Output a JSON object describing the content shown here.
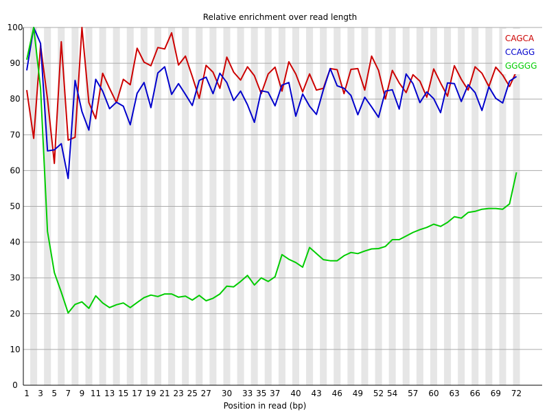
{
  "chart_data": {
    "type": "line",
    "title": "Relative enrichment over read length",
    "xlabel": "Position in read (bp)",
    "ylabel": "",
    "ylim": [
      0,
      100
    ],
    "yticks": [
      0,
      10,
      20,
      30,
      40,
      50,
      60,
      70,
      80,
      90,
      100
    ],
    "grid": "horizontal lines with alternating vertical position bands",
    "legend_position": "top-right",
    "x_tick_labels": [
      "1",
      "3",
      "5",
      "7",
      "9",
      "11",
      "13",
      "15",
      "17",
      "19",
      "21",
      "23",
      "25",
      "27",
      "30",
      "33",
      "35",
      "37",
      "40",
      "43",
      "46",
      "49",
      "52",
      "54",
      "57",
      "60",
      "63",
      "66",
      "69",
      "72"
    ],
    "x": [
      "1",
      "2",
      "3",
      "4",
      "5",
      "6",
      "7",
      "8",
      "9",
      "10",
      "11",
      "12",
      "13",
      "14",
      "15",
      "16",
      "17",
      "18",
      "19",
      "20",
      "21",
      "22",
      "23",
      "24",
      "25",
      "26",
      "27",
      "28",
      "29",
      "30",
      "31",
      "32",
      "33",
      "34",
      "35",
      "36",
      "37",
      "38",
      "39",
      "40",
      "41",
      "42",
      "43",
      "44",
      "45",
      "46",
      "47",
      "48",
      "49",
      "50",
      "51",
      "52",
      "53",
      "54",
      "55",
      "56",
      "57",
      "58",
      "59",
      "60",
      "61",
      "62",
      "63",
      "64",
      "65",
      "66",
      "67",
      "68",
      "69",
      "70",
      "71",
      "72"
    ],
    "series": [
      {
        "name": "CAGCA",
        "color": "#cc0000",
        "values": [
          82.5,
          69,
          95,
          80,
          62,
          96,
          68.5,
          69.3,
          100,
          79,
          74.5,
          87.2,
          83,
          79,
          85.5,
          84,
          94.2,
          90.3,
          89.3,
          94.4,
          94,
          98.5,
          89.5,
          92,
          86.3,
          80.2,
          89.4,
          87.5,
          83,
          91.7,
          87.5,
          85.3,
          89,
          86.5,
          81.5,
          87,
          88.9,
          82.2,
          90.4,
          87,
          82,
          87,
          82.5,
          83,
          88.5,
          88.2,
          81.5,
          88.3,
          88.5,
          82.5,
          92,
          88,
          80,
          88,
          84.5,
          81.8,
          86.8,
          85,
          80.5,
          88.4,
          84.5,
          80.8,
          89.3,
          85.5,
          82.5,
          89,
          87.2,
          83.5,
          88.9,
          86.7,
          83.5,
          87.8
        ]
      },
      {
        "name": "CCAGG",
        "color": "#0000cc",
        "values": [
          88,
          100,
          95.5,
          65.5,
          65.8,
          67.5,
          57.8,
          85.2,
          76.5,
          71.3,
          85.5,
          82.2,
          77.3,
          79.1,
          78,
          72.8,
          81.6,
          84.6,
          77.6,
          87.3,
          89,
          81.3,
          84.3,
          81.3,
          78.2,
          85.2,
          86.1,
          81.5,
          87.2,
          84.6,
          79.6,
          82.2,
          78.4,
          73.5,
          82.3,
          81.9,
          78.1,
          83.9,
          84.6,
          75.2,
          81.4,
          78,
          75.7,
          82.6,
          88.5,
          83.7,
          83,
          81,
          75.6,
          80.5,
          77.8,
          74.9,
          82.2,
          82.6,
          77.2,
          87,
          84.3,
          79,
          82,
          80.1,
          76.2,
          84.5,
          84.3,
          79.3,
          84,
          81.8,
          76.8,
          83.4,
          80.2,
          78.9,
          85,
          86.3
        ]
      },
      {
        "name": "GGGGG",
        "color": "#00cc00",
        "values": [
          91,
          100,
          83,
          43,
          31.5,
          26,
          20.2,
          22.6,
          23.3,
          21.5,
          25,
          23,
          21.7,
          22.5,
          23,
          21.7,
          23.1,
          24.5,
          25.2,
          24.8,
          25.5,
          25.5,
          24.6,
          24.9,
          23.8,
          25.1,
          23.6,
          24.3,
          25.5,
          27.7,
          27.5,
          29,
          30.7,
          28,
          30,
          29,
          30.3,
          36.5,
          35.2,
          34.3,
          33,
          38.5,
          36.8,
          35.1,
          34.8,
          34.8,
          36.2,
          37.1,
          36.8,
          37.5,
          38.1,
          38.2,
          38.8,
          40.7,
          40.7,
          41.7,
          42.7,
          43.5,
          44.1,
          45,
          44.4,
          45.5,
          47.1,
          46.7,
          48.3,
          48.6,
          49.2,
          49.4,
          49.4,
          49.2,
          50.7,
          59.5
        ]
      }
    ]
  }
}
